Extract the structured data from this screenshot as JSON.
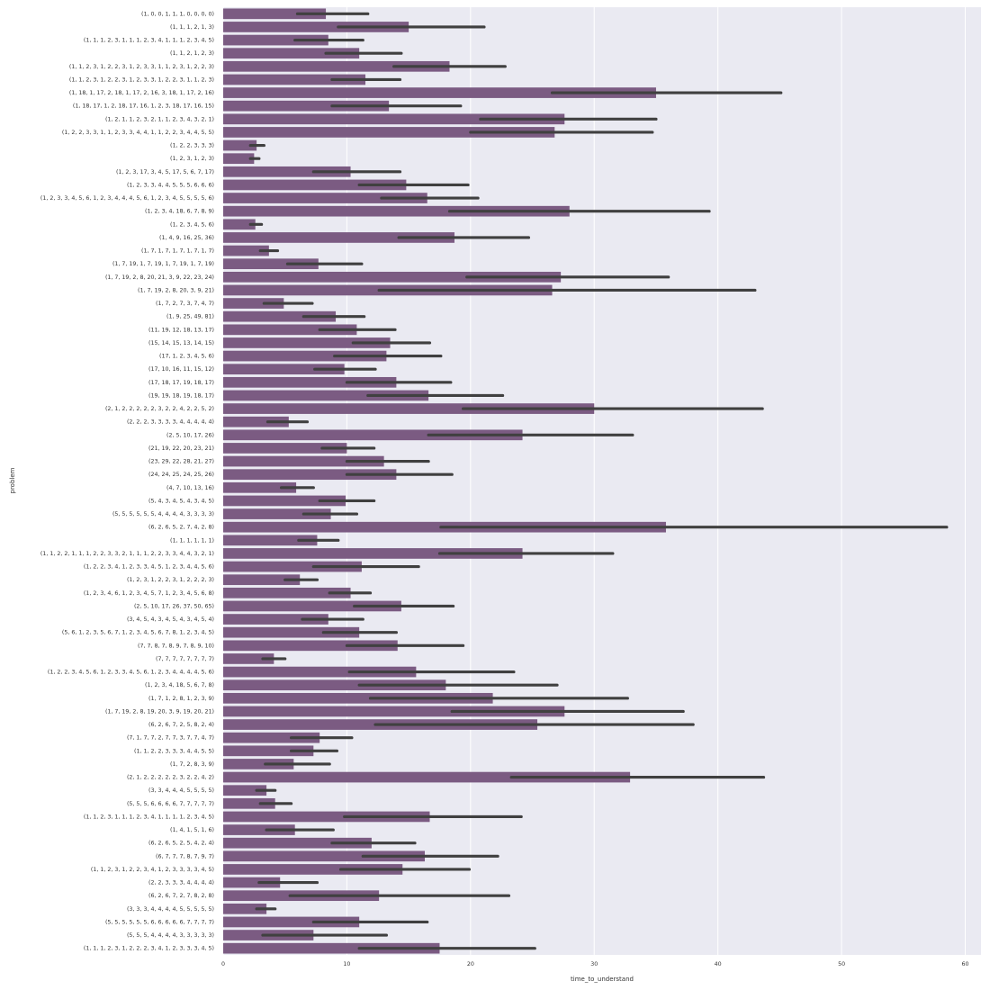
{
  "chart_data": {
    "type": "bar",
    "orientation": "horizontal",
    "title": "",
    "xlabel": "time_to_understand",
    "ylabel": "problem",
    "xlim": [
      0,
      61
    ],
    "xticks": [
      0,
      10,
      20,
      30,
      40,
      50,
      60
    ],
    "grid": true,
    "bar_color": "#7b5b82",
    "errorbar_color": "#404040",
    "background_color": "#eaeaf2",
    "grid_color": "#ffffff",
    "categories": [
      "(1, 0, 0, 1, 1, 1, 0, 0, 0, 0)",
      "(1, 1, 1, 2, 1, 3)",
      "(1, 1, 1, 2, 3, 1, 1, 1, 2, 3, 4, 1, 1, 1, 2, 3, 4, 5)",
      "(1, 1, 2, 1, 2, 3)",
      "(1, 1, 2, 3, 1, 2, 2, 3, 1, 2, 3, 3, 1, 1, 2, 3, 1, 2, 2, 3)",
      "(1, 1, 2, 3, 1, 2, 2, 3, 1, 2, 3, 3, 1, 2, 2, 3, 1, 1, 2, 3)",
      "(1, 18, 1, 17, 2, 18, 1, 17, 2, 16, 3, 18, 1, 17, 2, 16)",
      "(1, 18, 17, 1, 2, 18, 17, 16, 1, 2, 3, 18, 17, 16, 15)",
      "(1, 2, 1, 1, 2, 3, 2, 1, 1, 2, 3, 4, 3, 2, 1)",
      "(1, 2, 2, 3, 3, 1, 1, 2, 3, 3, 4, 4, 1, 1, 2, 2, 3, 4, 4, 5, 5)",
      "(1, 2, 2, 3, 3, 3)",
      "(1, 2, 3, 1, 2, 3)",
      "(1, 2, 3, 17, 3, 4, 5, 17, 5, 6, 7, 17)",
      "(1, 2, 3, 3, 4, 4, 5, 5, 5, 6, 6, 6)",
      "(1, 2, 3, 3, 4, 5, 6, 1, 2, 3, 4, 4, 4, 5, 6, 1, 2, 3, 4, 5, 5, 5, 5, 6)",
      "(1, 2, 3, 4, 18, 6, 7, 8, 9)",
      "(1, 2, 3, 4, 5, 6)",
      "(1, 4, 9, 16, 25, 36)",
      "(1, 7, 1, 7, 1, 7, 1, 7, 1, 7)",
      "(1, 7, 19, 1, 7, 19, 1, 7, 19, 1, 7, 19)",
      "(1, 7, 19, 2, 8, 20, 21, 3, 9, 22, 23, 24)",
      "(1, 7, 19, 2, 8, 20, 3, 9, 21)",
      "(1, 7, 2, 7, 3, 7, 4, 7)",
      "(1, 9, 25, 49, 81)",
      "(11, 19, 12, 18, 13, 17)",
      "(15, 14, 15, 13, 14, 15)",
      "(17, 1, 2, 3, 4, 5, 6)",
      "(17, 10, 16, 11, 15, 12)",
      "(17, 18, 17, 19, 18, 17)",
      "(19, 19, 18, 19, 18, 17)",
      "(2, 1, 2, 2, 2, 2, 2, 3, 2, 2, 4, 2, 2, 5, 2)",
      "(2, 2, 2, 3, 3, 3, 3, 4, 4, 4, 4, 4)",
      "(2, 5, 10, 17, 26)",
      "(21, 19, 22, 20, 23, 21)",
      "(23, 29, 22, 28, 21, 27)",
      "(24, 24, 25, 24, 25, 26)",
      "(4, 7, 10, 13, 16)",
      "(5, 4, 3, 4, 5, 4, 3, 4, 5)",
      "(5, 5, 5, 5, 5, 5, 4, 4, 4, 4, 3, 3, 3, 3)",
      "(6, 2, 6, 5, 2, 7, 4, 2, 8)",
      "(1, 1, 1, 1, 1, 1)",
      "(1, 1, 2, 2, 1, 1, 1, 2, 2, 3, 3, 2, 1, 1, 1, 2, 2, 3, 3, 4, 4, 3, 2, 1)",
      "(1, 2, 2, 3, 4, 1, 2, 3, 3, 4, 5, 1, 2, 3, 4, 4, 5, 6)",
      "(1, 2, 3, 1, 2, 2, 3, 1, 2, 2, 2, 3)",
      "(1, 2, 3, 4, 6, 1, 2, 3, 4, 5, 7, 1, 2, 3, 4, 5, 6, 8)",
      "(2, 5, 10, 17, 26, 37, 50, 65)",
      "(3, 4, 5, 4, 3, 4, 5, 4, 3, 4, 5, 4)",
      "(5, 6, 1, 2, 3, 5, 6, 7, 1, 2, 3, 4, 5, 6, 7, 8, 1, 2, 3, 4, 5)",
      "(7, 7, 8, 7, 8, 9, 7, 8, 9, 10)",
      "(7, 7, 7, 7, 7, 7, 7, 7)",
      "(1, 2, 2, 3, 4, 5, 6, 1, 2, 3, 3, 4, 5, 6, 1, 2, 3, 4, 4, 4, 4, 5, 6)",
      "(1, 2, 3, 4, 18, 5, 6, 7, 8)",
      "(1, 7, 1, 2, 8, 1, 2, 3, 9)",
      "(1, 7, 19, 2, 8, 19, 20, 3, 9, 19, 20, 21)",
      "(6, 2, 6, 7, 2, 5, 8, 2, 4)",
      "(7, 1, 7, 7, 2, 7, 7, 3, 7, 7, 4, 7)",
      "(1, 1, 2, 2, 3, 3, 3, 4, 4, 5, 5)",
      "(1, 7, 2, 8, 3, 9)",
      "(2, 1, 2, 2, 2, 2, 2, 3, 2, 2, 4, 2)",
      "(3, 3, 4, 4, 4, 5, 5, 5, 5)",
      "(5, 5, 5, 6, 6, 6, 6, 7, 7, 7, 7, 7)",
      "(1, 1, 2, 3, 1, 1, 1, 2, 3, 4, 1, 1, 1, 1, 2, 3, 4, 5)",
      "(1, 4, 1, 5, 1, 6)",
      "(6, 2, 6, 5, 2, 5, 4, 2, 4)",
      "(6, 7, 7, 7, 8, 7, 9, 7)",
      "(1, 1, 2, 3, 1, 2, 2, 3, 4, 1, 2, 3, 3, 3, 3, 4, 5)",
      "(2, 2, 3, 3, 3, 4, 4, 4, 4)",
      "(6, 2, 6, 7, 2, 7, 8, 2, 8)",
      "(3, 3, 3, 4, 4, 4, 4, 5, 5, 5, 5, 5)",
      "(5, 5, 5, 5, 5, 5, 6, 6, 6, 6, 6, 7, 7, 7, 7)",
      "(5, 5, 5, 4, 4, 4, 4, 3, 3, 3, 3, 3)",
      "(1, 1, 1, 2, 3, 1, 2, 2, 2, 3, 4, 1, 2, 3, 3, 3, 4, 5)"
    ],
    "values": [
      8.3,
      15.0,
      8.5,
      11.0,
      18.3,
      11.5,
      35.0,
      13.4,
      27.6,
      26.8,
      2.7,
      2.5,
      10.3,
      14.8,
      16.5,
      28.0,
      2.6,
      18.7,
      3.7,
      7.7,
      27.3,
      26.6,
      4.9,
      9.1,
      10.8,
      13.5,
      13.2,
      9.8,
      14.0,
      16.6,
      30.0,
      5.3,
      24.2,
      10.0,
      13.0,
      14.0,
      5.9,
      9.9,
      8.7,
      35.8,
      7.6,
      24.2,
      11.2,
      6.2,
      10.3,
      14.4,
      8.5,
      11.0,
      14.1,
      4.1,
      15.6,
      18.0,
      21.8,
      27.6,
      25.4,
      7.8,
      7.3,
      5.7,
      32.9,
      3.5,
      4.2,
      16.7,
      5.8,
      12.0,
      16.3,
      14.5,
      4.6,
      12.6,
      3.5,
      11.0,
      7.3,
      17.5
    ],
    "ci_low": [
      6.0,
      9.3,
      5.8,
      8.3,
      13.8,
      8.8,
      26.6,
      8.8,
      20.8,
      20.0,
      2.2,
      2.2,
      7.3,
      11.0,
      12.8,
      18.3,
      2.2,
      14.2,
      3.0,
      5.2,
      19.7,
      12.6,
      3.3,
      6.5,
      7.8,
      10.5,
      9.0,
      7.4,
      10.0,
      11.7,
      19.4,
      3.6,
      16.6,
      8.0,
      10.0,
      10.0,
      4.7,
      7.8,
      6.5,
      17.6,
      6.1,
      17.5,
      7.3,
      5.0,
      8.6,
      10.6,
      6.4,
      8.1,
      10.0,
      3.2,
      10.2,
      11.0,
      11.9,
      18.5,
      12.3,
      5.5,
      5.5,
      3.4,
      23.3,
      2.7,
      3.0,
      9.8,
      3.5,
      8.8,
      11.3,
      9.5,
      2.9,
      5.4,
      2.7,
      7.3,
      3.2,
      11.0
    ],
    "ci_high": [
      11.7,
      21.1,
      11.3,
      14.4,
      22.8,
      14.3,
      45.1,
      19.2,
      35.0,
      34.7,
      3.3,
      2.9,
      14.3,
      19.8,
      20.6,
      39.3,
      3.1,
      24.7,
      4.4,
      11.2,
      36.0,
      43.0,
      7.2,
      11.4,
      13.9,
      16.7,
      17.6,
      12.3,
      18.4,
      22.6,
      43.6,
      6.8,
      33.1,
      12.2,
      16.6,
      18.5,
      7.3,
      12.2,
      10.8,
      58.5,
      9.3,
      31.5,
      15.8,
      7.6,
      11.9,
      18.6,
      11.3,
      14.0,
      19.4,
      5.0,
      23.5,
      27.0,
      32.7,
      37.2,
      38.0,
      10.4,
      9.2,
      8.6,
      43.7,
      4.2,
      5.5,
      24.1,
      8.9,
      15.5,
      22.2,
      19.9,
      7.6,
      23.1,
      4.2,
      16.5,
      13.2,
      25.2
    ]
  }
}
